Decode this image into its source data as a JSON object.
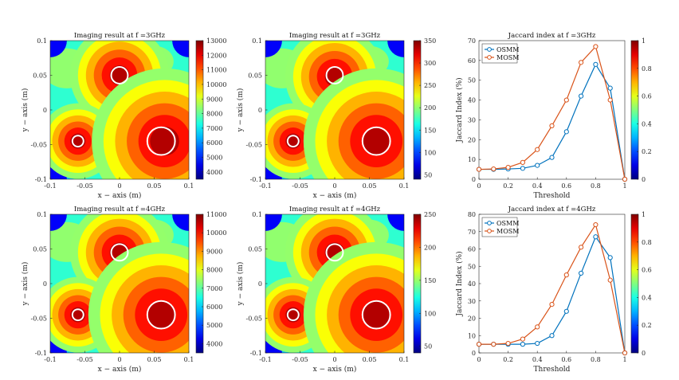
{
  "chart_data": [
    {
      "panel": "r1c1",
      "type": "heatmap",
      "title": "Imaging result at f =3GHz",
      "xlabel": "x − axis (m)",
      "ylabel": "y − axis (m)",
      "xlim": [
        -0.1,
        0.1
      ],
      "ylim": [
        -0.1,
        0.1
      ],
      "xticks": [
        "-0.1",
        "-0.05",
        "0",
        "0.05",
        "0.1"
      ],
      "yticks": [
        "-0.1",
        "-0.05",
        "0",
        "0.05",
        "0.1"
      ],
      "colorbar": {
        "min": 3500,
        "max": 13000,
        "ticks": [
          4000,
          5000,
          6000,
          7000,
          8000,
          9000,
          10000,
          11000,
          12000,
          13000
        ]
      },
      "peaks": [
        {
          "x": 0.0,
          "y": 0.05,
          "value": 12500
        },
        {
          "x": -0.06,
          "y": -0.045,
          "value": 12000
        },
        {
          "x": 0.065,
          "y": -0.045,
          "value": 12500
        }
      ],
      "targets": [
        {
          "x": 0.0,
          "y": 0.05,
          "r": 0.012
        },
        {
          "x": -0.06,
          "y": -0.045,
          "r": 0.008
        },
        {
          "x": 0.06,
          "y": -0.045,
          "r": 0.02
        }
      ]
    },
    {
      "panel": "r1c2",
      "type": "heatmap",
      "title": "Imaging result at f =3GHz",
      "xlabel": "x − axis (m)",
      "ylabel": "y − axis (m)",
      "xlim": [
        -0.1,
        0.1
      ],
      "ylim": [
        -0.1,
        0.1
      ],
      "xticks": [
        "-0.1",
        "-0.05",
        "0",
        "0.05",
        "0.1"
      ],
      "yticks": [
        "-0.1",
        "-0.05",
        "0",
        "0.05",
        "0.1"
      ],
      "colorbar": {
        "min": 40,
        "max": 350,
        "ticks": [
          50,
          100,
          150,
          200,
          250,
          300,
          350
        ]
      },
      "peaks": [
        {
          "x": 0.0,
          "y": 0.048,
          "value": 340
        },
        {
          "x": -0.06,
          "y": -0.045,
          "value": 320
        },
        {
          "x": 0.06,
          "y": -0.045,
          "value": 345
        }
      ],
      "targets": [
        {
          "x": 0.0,
          "y": 0.05,
          "r": 0.012
        },
        {
          "x": -0.06,
          "y": -0.045,
          "r": 0.008
        },
        {
          "x": 0.06,
          "y": -0.045,
          "r": 0.02
        }
      ]
    },
    {
      "panel": "r1c3",
      "type": "line",
      "title": "Jaccard index at f =3GHz",
      "xlabel": "Threshold",
      "ylabel": "Jaccard Index (%)",
      "xlim": [
        0,
        1
      ],
      "ylim": [
        0,
        70
      ],
      "xticks": [
        "0",
        "0.2",
        "0.4",
        "0.6",
        "0.8",
        "1"
      ],
      "yticks": [
        "0",
        "10",
        "20",
        "30",
        "40",
        "50",
        "60",
        "70"
      ],
      "x": [
        0,
        0.1,
        0.2,
        0.3,
        0.4,
        0.5,
        0.6,
        0.7,
        0.8,
        0.9,
        1.0
      ],
      "series": [
        {
          "name": "OSMM",
          "color": "#0072BD",
          "values": [
            5,
            5,
            5.2,
            5.5,
            7,
            11,
            24,
            42,
            58,
            46,
            0
          ]
        },
        {
          "name": "MOSM",
          "color": "#D95319",
          "values": [
            5,
            5.2,
            6,
            8.5,
            15,
            27,
            40,
            59,
            67,
            40,
            0
          ]
        }
      ],
      "legend": "top-left",
      "colorbar": {
        "min": 0,
        "max": 1,
        "ticks": [
          0,
          0.2,
          0.4,
          0.6,
          0.8,
          1
        ]
      }
    },
    {
      "panel": "r2c1",
      "type": "heatmap",
      "title": "Imaging result at f =4GHz",
      "xlabel": "x − axis (m)",
      "ylabel": "y − axis (m)",
      "xlim": [
        -0.1,
        0.1
      ],
      "ylim": [
        -0.1,
        0.1
      ],
      "xticks": [
        "-0.1",
        "-0.05",
        "0",
        "0.05",
        "0.1"
      ],
      "yticks": [
        "-0.1",
        "-0.05",
        "0",
        "0.05",
        "0.1"
      ],
      "colorbar": {
        "min": 3500,
        "max": 11000,
        "ticks": [
          4000,
          5000,
          6000,
          7000,
          8000,
          9000,
          10000,
          11000
        ]
      },
      "peaks": [
        {
          "x": 0.0,
          "y": 0.045,
          "value": 10500
        },
        {
          "x": -0.06,
          "y": -0.045,
          "value": 10200
        },
        {
          "x": 0.06,
          "y": -0.045,
          "value": 10300
        }
      ],
      "targets": [
        {
          "x": 0.0,
          "y": 0.045,
          "r": 0.012
        },
        {
          "x": -0.06,
          "y": -0.045,
          "r": 0.008
        },
        {
          "x": 0.06,
          "y": -0.045,
          "r": 0.02
        }
      ]
    },
    {
      "panel": "r2c2",
      "type": "heatmap",
      "title": "Imaging result at f =4GHz",
      "xlabel": "x − axis (m)",
      "ylabel": "y − axis (m)",
      "xlim": [
        -0.1,
        0.1
      ],
      "ylim": [
        -0.1,
        0.1
      ],
      "xticks": [
        "-0.1",
        "-0.05",
        "0",
        "0.05",
        "0.1"
      ],
      "yticks": [
        "-0.1",
        "-0.05",
        "0",
        "0.05",
        "0.1"
      ],
      "colorbar": {
        "min": 40,
        "max": 250,
        "ticks": [
          50,
          100,
          150,
          200,
          250
        ]
      },
      "peaks": [
        {
          "x": 0.0,
          "y": 0.045,
          "value": 245
        },
        {
          "x": -0.06,
          "y": -0.045,
          "value": 235
        },
        {
          "x": 0.06,
          "y": -0.045,
          "value": 245
        }
      ],
      "targets": [
        {
          "x": 0.0,
          "y": 0.045,
          "r": 0.012
        },
        {
          "x": -0.06,
          "y": -0.045,
          "r": 0.008
        },
        {
          "x": 0.06,
          "y": -0.045,
          "r": 0.02
        }
      ]
    },
    {
      "panel": "r2c3",
      "type": "line",
      "title": "Jaccard index at f =4GHz",
      "xlabel": "Threshold",
      "ylabel": "Jaccard Index (%)",
      "xlim": [
        0,
        1
      ],
      "ylim": [
        0,
        80
      ],
      "xticks": [
        "0",
        "0.2",
        "0.4",
        "0.6",
        "0.8",
        "1"
      ],
      "yticks": [
        "0",
        "10",
        "20",
        "30",
        "40",
        "50",
        "60",
        "70",
        "80"
      ],
      "x": [
        0,
        0.1,
        0.2,
        0.3,
        0.4,
        0.5,
        0.6,
        0.7,
        0.8,
        0.9,
        1.0
      ],
      "series": [
        {
          "name": "OSMM",
          "color": "#0072BD",
          "values": [
            5,
            5,
            5,
            5,
            5.5,
            10,
            24,
            46,
            67,
            55,
            0
          ]
        },
        {
          "name": "MOSM",
          "color": "#D95319",
          "values": [
            5,
            5,
            5.5,
            8,
            15,
            28,
            45,
            61,
            74,
            42,
            0
          ]
        }
      ],
      "legend": "top-left",
      "colorbar": {
        "min": 0,
        "max": 1,
        "ticks": [
          0,
          0.2,
          0.4,
          0.6,
          0.8,
          1
        ]
      }
    }
  ]
}
